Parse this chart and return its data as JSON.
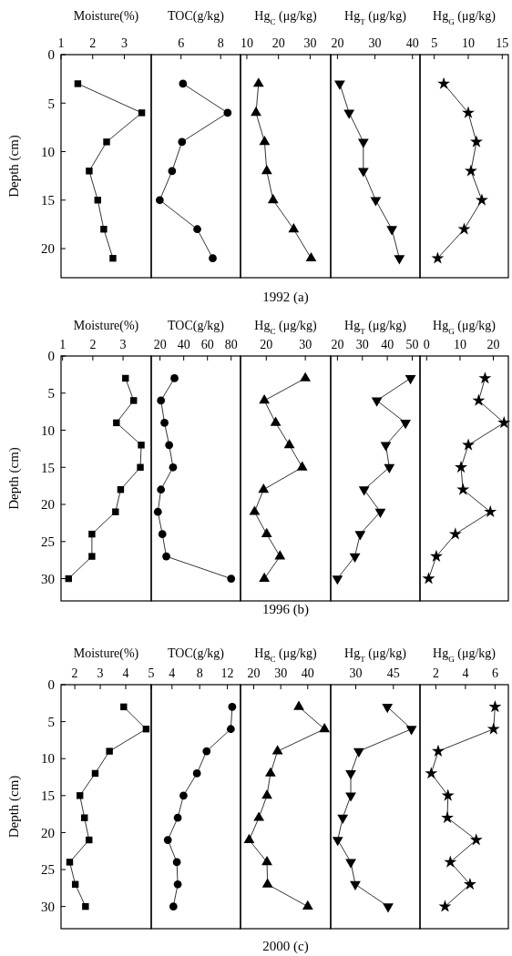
{
  "chart_data": [
    {
      "type": "line",
      "xlabel": "Moisture(%)",
      "ylabel": "Depth (cm)",
      "xlim": [
        1,
        3.85
      ],
      "xticks": [
        1,
        2,
        3
      ],
      "ylim": [
        23,
        0
      ],
      "yticks": [
        0,
        5,
        10,
        15,
        20
      ],
      "marker": "square",
      "series": [
        {
          "color": "#000000",
          "x": [
            1.53,
            3.55,
            2.44,
            1.89,
            2.16,
            2.35,
            2.64
          ],
          "values": [
            3,
            6,
            9,
            12,
            15,
            18,
            21
          ]
        }
      ]
    },
    {
      "type": "line",
      "xlabel": "TOC(g/kg)",
      "xlim": [
        4.5,
        9
      ],
      "xticks": [
        6,
        8
      ],
      "ylim": [
        23,
        0
      ],
      "yticks": [
        0,
        5,
        10,
        15,
        20
      ],
      "tick_labels": "x",
      "marker": "circle",
      "series": [
        {
          "color": "#000000",
          "x": [
            6.1,
            8.35,
            6.05,
            5.55,
            4.93,
            6.82,
            7.6
          ],
          "values": [
            3,
            6,
            9,
            12,
            15,
            18,
            21
          ]
        }
      ]
    },
    {
      "type": "line",
      "xlabel": "Hg$_{C}$ (μg/kg)",
      "xlim": [
        8,
        36.5
      ],
      "xticks": [
        10,
        20,
        30
      ],
      "ylim": [
        23,
        0
      ],
      "yticks": [
        0,
        5,
        10,
        15,
        20
      ],
      "tick_labels": "x",
      "marker": "triangle",
      "annotations": [
        "1992 (a)"
      ],
      "series": [
        {
          "color": "#000000",
          "x": [
            13.7,
            12.9,
            15.6,
            16.3,
            18.3,
            24.8,
            30.3
          ],
          "values": [
            3,
            6,
            9,
            12,
            15,
            18,
            21
          ]
        }
      ]
    },
    {
      "type": "line",
      "xlabel": "Hg$_{T}$ (μg/kg)",
      "xlim": [
        18.2,
        42
      ],
      "xticks": [
        20,
        30,
        40
      ],
      "ylim": [
        23,
        0
      ],
      "yticks": [
        0,
        5,
        10,
        15,
        20
      ],
      "tick_labels": "x",
      "marker": "triangle-down",
      "series": [
        {
          "color": "#000000",
          "x": [
            20.6,
            23.1,
            26.9,
            26.9,
            30.2,
            34.5,
            36.5
          ],
          "values": [
            3,
            6,
            9,
            12,
            15,
            18,
            21
          ]
        }
      ]
    },
    {
      "type": "line",
      "xlabel": "Hg$_{G}$ (μg/kg)",
      "xlim": [
        2.9,
        15.9
      ],
      "xticks": [
        5,
        10,
        15
      ],
      "ylim": [
        23,
        0
      ],
      "yticks": [
        0,
        5,
        10,
        15,
        20
      ],
      "tick_labels": "x",
      "marker": "star",
      "series": [
        {
          "color": "#000000",
          "x": [
            6.4,
            10,
            11.2,
            10.4,
            12,
            9.4,
            5.5
          ],
          "values": [
            3,
            6,
            9,
            12,
            15,
            18,
            21
          ]
        }
      ]
    },
    {
      "type": "line",
      "xlabel": "Moisture(%)",
      "ylabel": "Depth (cm)",
      "xlim": [
        0.95,
        3.93
      ],
      "xticks": [
        1,
        2,
        3
      ],
      "ylim": [
        33,
        0
      ],
      "yticks": [
        0,
        5,
        10,
        15,
        20,
        25,
        30
      ],
      "marker": "square",
      "series": [
        {
          "color": "#000000",
          "x": [
            3.08,
            3.35,
            2.78,
            3.6,
            3.57,
            2.92,
            2.75,
            1.97,
            1.97,
            1.2
          ],
          "values": [
            3,
            6,
            9,
            12,
            15,
            18,
            21,
            24,
            27,
            30
          ]
        }
      ]
    },
    {
      "type": "line",
      "xlabel": "TOC(g/kg)",
      "xlim": [
        12.6,
        87.9
      ],
      "xticks": [
        20,
        40,
        60,
        80
      ],
      "ylim": [
        33,
        0
      ],
      "yticks": [
        0,
        5,
        10,
        15,
        20,
        25,
        30
      ],
      "tick_labels": "x",
      "marker": "circle",
      "series": [
        {
          "color": "#000000",
          "x": [
            32.2,
            20.8,
            23.8,
            27.7,
            31,
            20.8,
            18.2,
            22,
            25.3,
            80
          ],
          "values": [
            3,
            6,
            9,
            12,
            15,
            18,
            21,
            24,
            27,
            30
          ]
        }
      ]
    },
    {
      "type": "line",
      "xlabel": "Hg$_{C}$ (μg/kg)",
      "xlim": [
        13.4,
        36.5
      ],
      "xticks": [
        20,
        30
      ],
      "ylim": [
        33,
        0
      ],
      "yticks": [
        0,
        5,
        10,
        15,
        20,
        25,
        30
      ],
      "tick_labels": "x",
      "marker": "triangle",
      "annotations": [
        "1996 (b)"
      ],
      "series": [
        {
          "color": "#000000",
          "x": [
            30,
            19.5,
            22.4,
            25.9,
            29.2,
            19.3,
            17,
            20.1,
            23.5,
            19.5
          ],
          "values": [
            3,
            6,
            9,
            12,
            15,
            18,
            21,
            24,
            27,
            30
          ]
        }
      ]
    },
    {
      "type": "line",
      "xlabel": "Hg$_{T}$ (μg/kg)",
      "xlim": [
        17.3,
        53.1
      ],
      "xticks": [
        20,
        30,
        40,
        50
      ],
      "ylim": [
        33,
        0
      ],
      "yticks": [
        0,
        5,
        10,
        15,
        20,
        25,
        30
      ],
      "tick_labels": "x",
      "marker": "triangle-down",
      "series": [
        {
          "color": "#000000",
          "x": [
            49.3,
            35.8,
            47.3,
            39.4,
            40.8,
            30.7,
            37.2,
            29.1,
            27,
            20
          ],
          "values": [
            3,
            6,
            9,
            12,
            15,
            18,
            21,
            24,
            27,
            30
          ]
        }
      ]
    },
    {
      "type": "line",
      "xlabel": "Hg$_{G}$ (μg/kg)",
      "xlim": [
        -2,
        24.5
      ],
      "xticks": [
        0,
        10,
        20
      ],
      "ylim": [
        33,
        0
      ],
      "yticks": [
        0,
        5,
        10,
        15,
        20,
        25,
        30
      ],
      "tick_labels": "x",
      "marker": "star",
      "series": [
        {
          "color": "#000000",
          "x": [
            17.5,
            15.6,
            23.2,
            12.5,
            10.3,
            10.9,
            19.1,
            8.6,
            2.9,
            0.6
          ],
          "values": [
            3,
            6,
            9,
            12,
            15,
            18,
            21,
            24,
            27,
            30
          ]
        }
      ]
    },
    {
      "type": "line",
      "xlabel": "Moisture(%)",
      "ylabel": "Depth (cm)",
      "xlim": [
        1.46,
        5
      ],
      "xticks": [
        2,
        3,
        4,
        5
      ],
      "ylim": [
        33,
        0
      ],
      "yticks": [
        0,
        5,
        10,
        15,
        20,
        25,
        30
      ],
      "marker": "square",
      "series": [
        {
          "color": "#000000",
          "x": [
            3.92,
            4.8,
            3.36,
            2.8,
            2.2,
            2.38,
            2.56,
            1.8,
            2.02,
            2.42
          ],
          "values": [
            3,
            6,
            9,
            12,
            15,
            18,
            21,
            24,
            27,
            30
          ]
        }
      ]
    },
    {
      "type": "line",
      "xlabel": "TOC(g/kg)",
      "xlim": [
        1,
        13.9
      ],
      "xticks": [
        4,
        8,
        12
      ],
      "ylim": [
        33,
        0
      ],
      "yticks": [
        0,
        5,
        10,
        15,
        20,
        25,
        30
      ],
      "tick_labels": "x",
      "marker": "circle",
      "series": [
        {
          "color": "#000000",
          "x": [
            12.7,
            12.5,
            9,
            7.6,
            5.66,
            4.83,
            3.4,
            4.7,
            4.83,
            4.2
          ],
          "values": [
            3,
            6,
            9,
            12,
            15,
            18,
            21,
            24,
            27,
            30
          ]
        }
      ]
    },
    {
      "type": "line",
      "xlabel": "Hg$_{C}$ (μg/kg)",
      "xlim": [
        15.1,
        48.5
      ],
      "xticks": [
        20,
        30,
        40
      ],
      "ylim": [
        33,
        0
      ],
      "yticks": [
        0,
        5,
        10,
        15,
        20,
        25,
        30
      ],
      "tick_labels": "x",
      "marker": "triangle",
      "annotations": [
        "2000 (c)"
      ],
      "series": [
        {
          "color": "#000000",
          "x": [
            36.7,
            46.2,
            28.8,
            26.2,
            24.9,
            21.9,
            18.3,
            24.9,
            25.1,
            40
          ],
          "values": [
            3,
            6,
            9,
            12,
            15,
            18,
            21,
            24,
            27,
            30
          ]
        }
      ]
    },
    {
      "type": "line",
      "xlabel": "Hg$_{T}$ (μg/kg)",
      "xlim": [
        20,
        55.6
      ],
      "xticks": [
        30,
        45
      ],
      "ylim": [
        33,
        0
      ],
      "yticks": [
        0,
        5,
        10,
        15,
        20,
        25,
        30
      ],
      "tick_labels": "x",
      "marker": "triangle-down",
      "series": [
        {
          "color": "#000000",
          "x": [
            42.6,
            52.2,
            31.2,
            28,
            28,
            24.8,
            22.8,
            28,
            29.8,
            42.9
          ],
          "values": [
            3,
            6,
            9,
            12,
            15,
            18,
            21,
            24,
            27,
            30
          ]
        }
      ]
    },
    {
      "type": "line",
      "xlabel": "Hg$_{G}$ (μg/kg)",
      "xlim": [
        0.93,
        6.9
      ],
      "xticks": [
        2,
        4,
        6
      ],
      "ylim": [
        33,
        0
      ],
      "yticks": [
        0,
        5,
        10,
        15,
        20,
        25,
        30
      ],
      "tick_labels": "x",
      "marker": "star",
      "series": [
        {
          "color": "#000000",
          "x": [
            6,
            5.9,
            2.16,
            1.69,
            2.82,
            2.78,
            4.73,
            2.98,
            4.31,
            2.62
          ],
          "values": [
            3,
            6,
            9,
            12,
            15,
            18,
            21,
            24,
            27,
            30
          ]
        }
      ]
    }
  ]
}
